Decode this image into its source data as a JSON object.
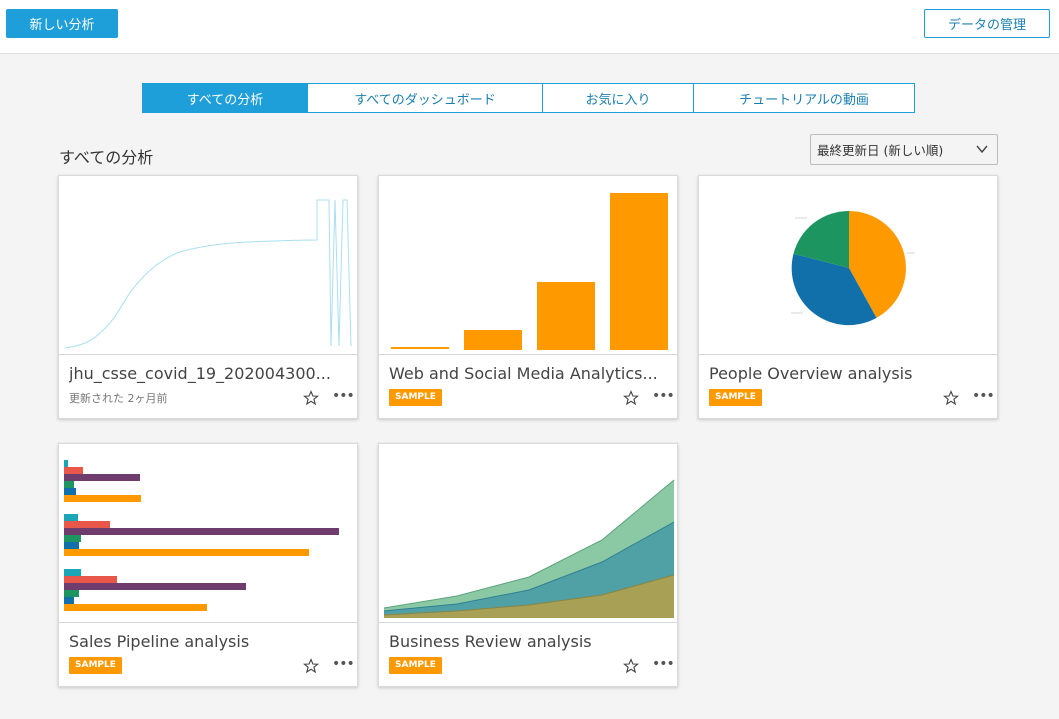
{
  "toolbar": {
    "new_analysis_label": "新しい分析",
    "manage_data_label": "データの管理"
  },
  "tabs": [
    {
      "label": "すべての分析",
      "active": true
    },
    {
      "label": "すべてのダッシュボード",
      "active": false
    },
    {
      "label": "お気に入り",
      "active": false
    },
    {
      "label": "チュートリアルの動画",
      "active": false
    }
  ],
  "section_title": "すべての分析",
  "sort": {
    "selected": "最終更新日 (新しい順)"
  },
  "cards": [
    {
      "title": "jhu_csse_covid_19_202004300...",
      "subtitle": "更新された 2ヶ月前",
      "badge": "",
      "thumbnail": "line-chart"
    },
    {
      "title": "Web and Social Media Analytics...",
      "subtitle": "",
      "badge": "SAMPLE",
      "thumbnail": "bar-chart"
    },
    {
      "title": "People Overview analysis",
      "subtitle": "",
      "badge": "SAMPLE",
      "thumbnail": "pie-chart"
    },
    {
      "title": "Sales Pipeline analysis",
      "subtitle": "",
      "badge": "SAMPLE",
      "thumbnail": "horizontal-bar-chart"
    },
    {
      "title": "Business Review analysis",
      "subtitle": "",
      "badge": "SAMPLE",
      "thumbnail": "area-chart"
    }
  ],
  "icons": {
    "star": "star-outline-icon",
    "more": "more-horizontal-icon",
    "chevron": "chevron-down-icon"
  },
  "more_glyph": "•••",
  "colors": {
    "primary": "#1f9fd9",
    "sample_badge": "#ff9900",
    "orange": "#ff9900",
    "blue": "#1170aa",
    "green": "#1d9560",
    "purple": "#6e3d6e",
    "red": "#e8574a",
    "teal": "#1aa6b7"
  }
}
